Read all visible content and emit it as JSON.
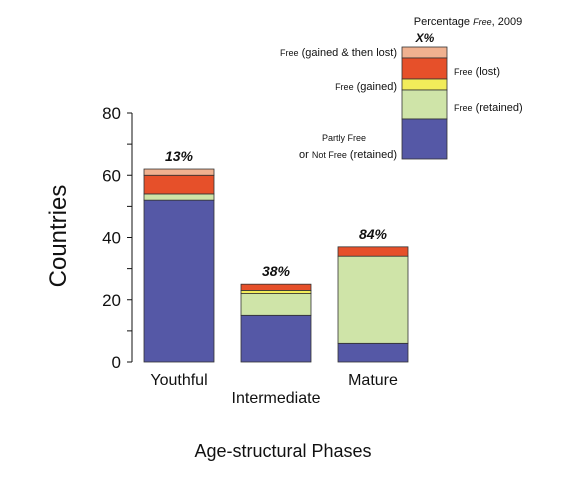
{
  "chart_data": {
    "type": "bar",
    "stacked": true,
    "categories": [
      "Youthful",
      "Intermediate",
      "Mature"
    ],
    "ylabel": "Countries",
    "xlabel": "Age-structural Phases",
    "ylim": [
      0,
      80
    ],
    "yticks": [
      "0",
      "20",
      "40",
      "60",
      "80"
    ],
    "grid": false,
    "series": [
      {
        "name": "Partly Free or Not Free (retained)",
        "color": "#5558a6",
        "values": [
          52,
          15,
          6
        ]
      },
      {
        "name": "Free (retained)",
        "color": "#cfe4a8",
        "values": [
          2,
          7,
          28
        ]
      },
      {
        "name": "Free (gained)",
        "color": "#f2ec5a",
        "values": [
          0,
          1,
          0
        ]
      },
      {
        "name": "Free (lost)",
        "color": "#e6502a",
        "values": [
          6,
          2,
          3
        ]
      },
      {
        "name": "Free (gained & then lost)",
        "color": "#f0b190",
        "values": [
          2,
          0,
          0
        ]
      }
    ],
    "percent_free": [
      "13%",
      "38%",
      "84%"
    ],
    "legend": {
      "position": "top-right",
      "title": "Percentage FREE, 2009",
      "sample_value": "X%",
      "entries_left": {
        "gained_then_lost": {
          "sc": "Free",
          "rest": " (gained & then lost)"
        },
        "gained": {
          "sc": "Free",
          "rest": " (gained)"
        },
        "not_free_line1": {
          "sc": "Partly Free"
        },
        "not_free_line2": {
          "pre": "or ",
          "sc": "Not Free",
          "rest": " (retained)"
        }
      },
      "entries_right": {
        "lost": {
          "sc": "Free",
          "rest": " (lost)"
        },
        "retained": {
          "sc": "Free",
          "rest": " (retained)"
        }
      },
      "title_parts": {
        "pre": "Percentage ",
        "italic": "Free",
        "post": ", 2009"
      }
    }
  }
}
